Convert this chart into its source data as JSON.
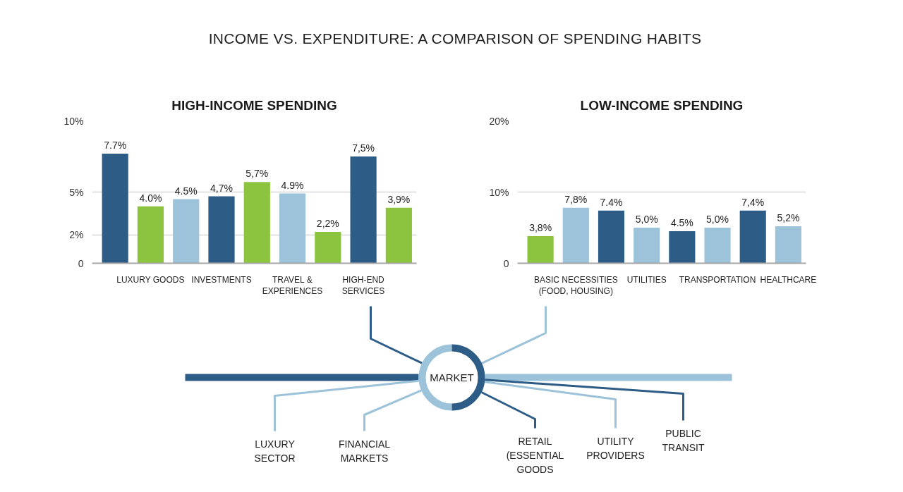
{
  "chart_data": [
    {
      "type": "other",
      "title": "INCOME VS. EXPENDITURE: A COMPARISON OF SPENDING HABITS"
    },
    {
      "type": "bar",
      "title": "HIGH-INCOME SPENDING",
      "categories": [
        null,
        "LUXURY GOODS",
        null,
        "INVESTMENTS",
        null,
        "TRAVEL &\nEXPERIENCES",
        null,
        "HIGH-END\nSERVICES",
        null
      ],
      "values": [
        7.7,
        4.0,
        4.5,
        4.7,
        5.7,
        4.9,
        2.2,
        7.5,
        3.9
      ],
      "colors": [
        "#2d5d87",
        "#8cc43f",
        "#9cc3da",
        "#2d5d87",
        "#8cc43f",
        "#9cc3da",
        "#8cc43f",
        "#2d5d87",
        "#8cc43f"
      ],
      "value_labels": [
        "7.7%",
        "4.0%",
        "4.5%",
        "4,7%",
        "5,7%",
        "4.9%",
        "2,2%",
        "7,5%",
        "3,9%"
      ],
      "ylim": [
        0,
        10
      ],
      "yticks": [
        0,
        {
          "value": 2,
          "label": "2%"
        },
        {
          "value": 5,
          "label": "5%"
        },
        {
          "value": 10,
          "label": "10%"
        }
      ],
      "grid": "y"
    },
    {
      "type": "bar",
      "title": "LOW-INCOME SPENDING",
      "categories": [
        null,
        "BASIC NECESSITIES\n(FOOD, HOUSING)",
        null,
        "UTILITIES",
        null,
        "TRANSPORTATION",
        null,
        "HEALTHCARE"
      ],
      "values": [
        3.8,
        7.8,
        7.4,
        5.0,
        4.5,
        5.0,
        7.4,
        5.2
      ],
      "colors": [
        "#8cc43f",
        "#9cc3da",
        "#2d5d87",
        "#9cc3da",
        "#2d5d87",
        "#9cc3da",
        "#2d5d87",
        "#9cc3da"
      ],
      "value_labels": [
        "3,8%",
        "7,8%",
        "7.4%",
        "5,0%",
        "4.5%",
        "5,0%",
        "7,4%",
        "5,2%"
      ],
      "ylim": [
        0,
        20
      ],
      "yticks": [
        0,
        {
          "value": 10,
          "label": "10%"
        },
        {
          "value": 20,
          "label": "20%"
        }
      ],
      "grid": "y"
    },
    {
      "type": "other",
      "annotations": [
        "MARKET",
        "LUXURY\nSECTOR",
        "FINANCIAL\nMARKETS",
        "RETAIL\n(ESSENTIAL\nGOODS",
        "UTILITY\nPROVIDERS",
        "PUBLIC\nTRANSIT"
      ]
    }
  ]
}
